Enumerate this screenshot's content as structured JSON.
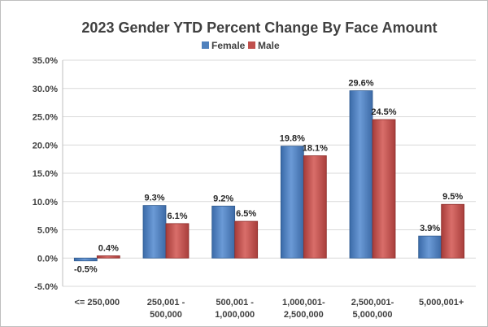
{
  "chart_data": {
    "type": "bar",
    "title": "2023 Gender YTD Percent Change By Face Amount",
    "categories": [
      [
        "<= 250,000"
      ],
      [
        "250,001 -",
        "500,000"
      ],
      [
        "500,001 -",
        "1,000,000"
      ],
      [
        "1,000,001-",
        "2,500,000"
      ],
      [
        "2,500,001-",
        "5,000,000"
      ],
      [
        "5,000,001+"
      ]
    ],
    "series": [
      {
        "name": "Female",
        "values": [
          -0.5,
          9.3,
          9.2,
          19.8,
          29.6,
          3.9
        ],
        "labels": [
          "-0.5%",
          "9.3%",
          "9.2%",
          "19.8%",
          "29.6%",
          "3.9%"
        ],
        "color": "#4f81bd"
      },
      {
        "name": "Male",
        "values": [
          0.4,
          6.1,
          6.5,
          18.1,
          24.5,
          9.5
        ],
        "labels": [
          "0.4%",
          "6.1%",
          "6.5%",
          "18.1%",
          "24.5%",
          "9.5%"
        ],
        "color": "#c0504d"
      }
    ],
    "ylim": [
      -5,
      35
    ],
    "yticks": [
      35,
      30,
      25,
      20,
      15,
      10,
      5,
      0,
      -5
    ],
    "ytick_labels": [
      "35.0%",
      "30.0%",
      "25.0%",
      "20.0%",
      "15.0%",
      "10.0%",
      "5.0%",
      "0.0%",
      "-5.0%"
    ],
    "grid": true,
    "legend_position": "top"
  }
}
